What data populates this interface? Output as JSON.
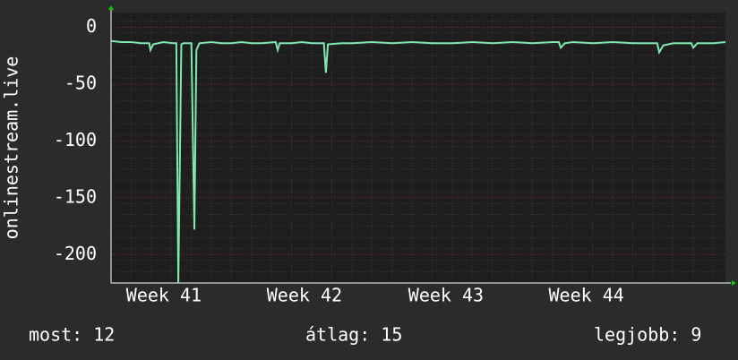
{
  "chart_data": {
    "type": "line",
    "y_label": "onlinestream.live",
    "x": [
      0,
      0.5,
      1,
      1.5,
      1.9,
      1.96,
      2.1,
      2.6,
      3.1,
      3.25,
      3.35,
      3.5,
      3.6,
      4.0,
      4.15,
      4.25,
      4.4,
      5,
      5.5,
      6,
      6.5,
      7,
      7.5,
      8.2,
      8.3,
      8.4,
      9,
      9.5,
      10,
      10.6,
      10.7,
      10.8,
      11.5,
      12,
      13,
      14,
      15,
      16,
      17,
      18,
      19,
      20,
      21,
      22,
      22.3,
      22.4,
      22.6,
      23,
      24,
      25,
      26,
      27,
      27.2,
      27.3,
      27.5,
      28,
      28.9,
      29,
      29.2,
      30,
      30.6
    ],
    "series": [
      {
        "name": "onlinestream.live",
        "color": "#7fe8b0",
        "values": [
          -12,
          -13,
          -13,
          -14,
          -14,
          -20,
          -15,
          -13,
          -14,
          -14,
          -225,
          -15,
          -14,
          -14,
          -178,
          -20,
          -14,
          -13,
          -14,
          -14,
          -13,
          -14,
          -14,
          -13,
          -20,
          -14,
          -14,
          -13,
          -14,
          -14,
          -40,
          -15,
          -14,
          -14,
          -13,
          -14,
          -13,
          -14,
          -14,
          -13,
          -14,
          -13,
          -14,
          -13,
          -13,
          -18,
          -14,
          -13,
          -14,
          -13,
          -14,
          -14,
          -14,
          -22,
          -16,
          -14,
          -14,
          -18,
          -14,
          -14,
          -13
        ]
      }
    ],
    "xlim": [
      0,
      30.6
    ],
    "xticks": [
      {
        "value": 2.63,
        "label": "Week 41"
      },
      {
        "value": 9.63,
        "label": "Week 42"
      },
      {
        "value": 16.68,
        "label": "Week 43"
      },
      {
        "value": 23.67,
        "label": "Week 44"
      }
    ],
    "ylim": [
      -225,
      13
    ],
    "yticks": [
      0,
      -50,
      -100,
      -150,
      -200
    ],
    "grid": true,
    "footer": [
      "most: 12",
      "átlag: 15",
      "legjobb: 9"
    ]
  }
}
